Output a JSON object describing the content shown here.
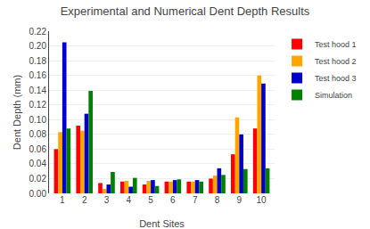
{
  "chart_data": {
    "type": "bar",
    "title": "Experimental and Numerical Dent Depth Results",
    "xlabel": "Dent Sites",
    "ylabel": "Dent Depth (mm)",
    "categories": [
      1,
      2,
      3,
      4,
      5,
      6,
      7,
      8,
      9,
      10
    ],
    "series": [
      {
        "name": "Test hood 1",
        "color": "#FF0000",
        "values": [
          0.06,
          0.092,
          0.014,
          0.016,
          0.012,
          0.016,
          0.016,
          0.02,
          0.053,
          0.088
        ]
      },
      {
        "name": "Test hood 2",
        "color": "#FFA500",
        "values": [
          0.083,
          0.085,
          0.006,
          0.017,
          0.017,
          0.016,
          0.016,
          0.024,
          0.103,
          0.16
        ]
      },
      {
        "name": "Test hood 3",
        "color": "#0000CC",
        "values": [
          0.205,
          0.108,
          0.012,
          0.009,
          0.018,
          0.018,
          0.018,
          0.034,
          0.08,
          0.149
        ]
      },
      {
        "name": "Simulation",
        "color": "#008000",
        "values": [
          0.088,
          0.139,
          0.029,
          0.021,
          0.01,
          0.019,
          0.016,
          0.025,
          0.033,
          0.034
        ]
      }
    ],
    "ylim": [
      0.0,
      0.22
    ],
    "yticks": [
      {
        "value": 0,
        "label": "0.00"
      },
      0.02,
      0.04,
      0.06,
      0.08,
      {
        "value": 0.1,
        "label": "0.10"
      },
      0.12,
      0.14,
      0.16,
      0.18,
      {
        "value": 0.2,
        "label": "0.20"
      },
      0.22
    ],
    "grid": true,
    "legend": "upper right"
  }
}
